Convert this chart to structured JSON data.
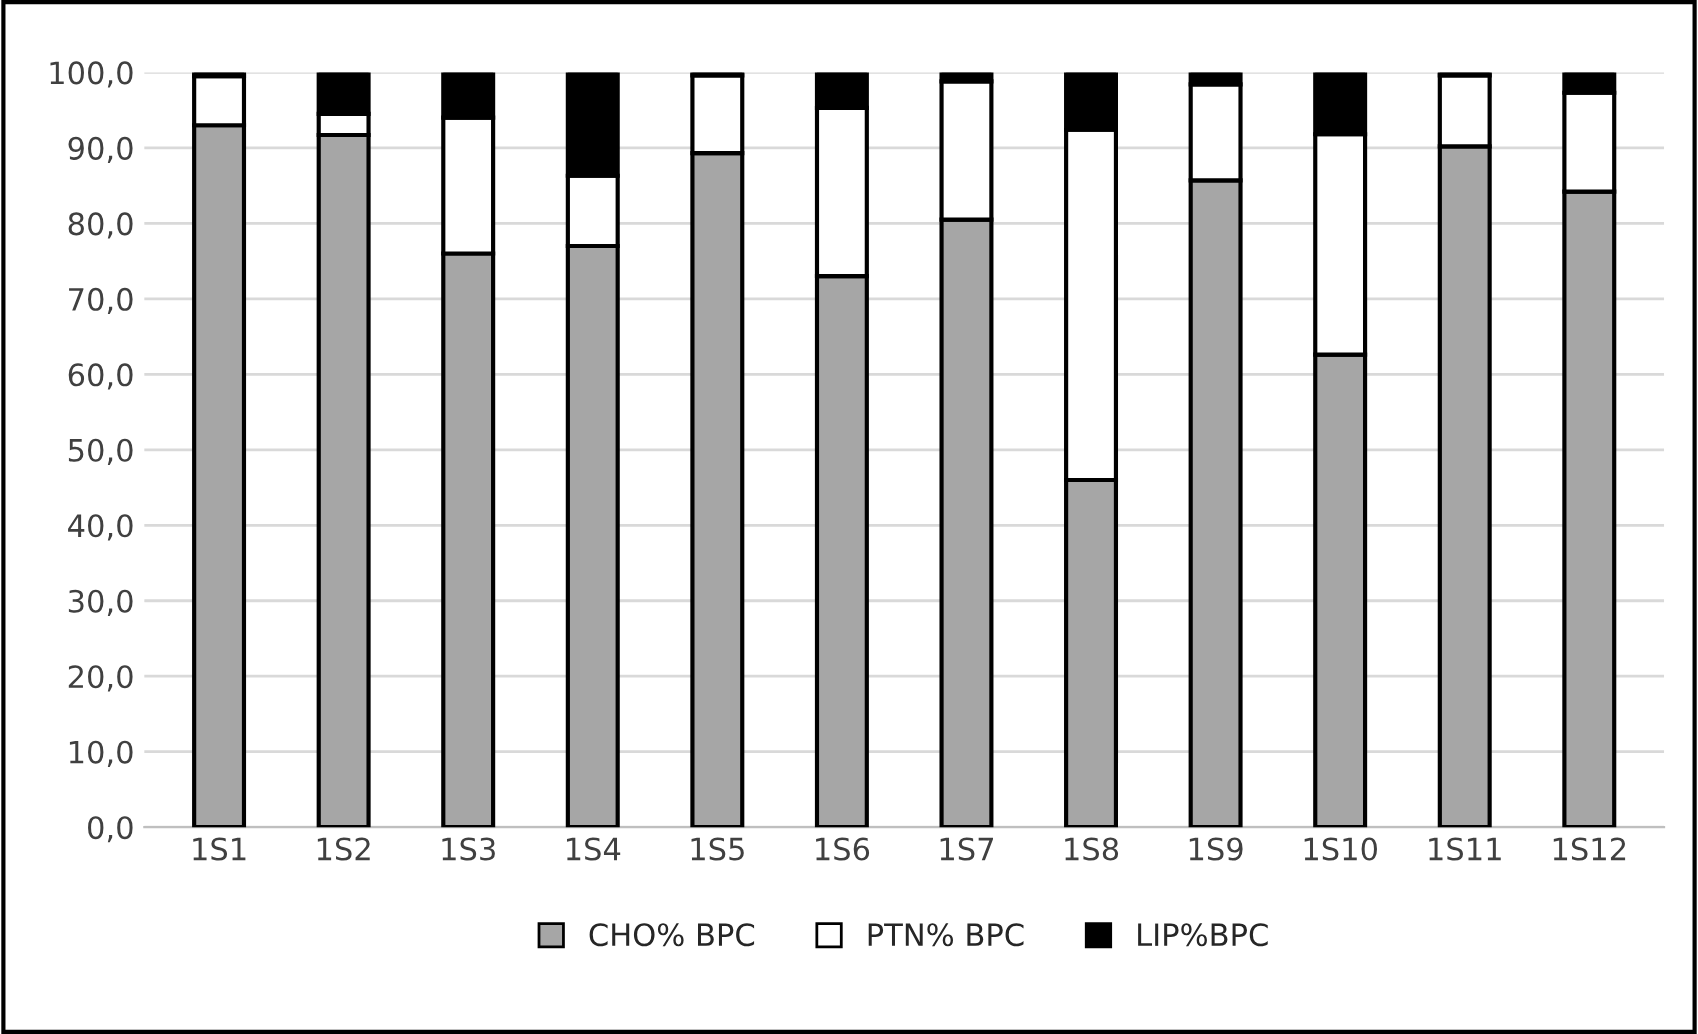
{
  "chart_data": {
    "type": "bar",
    "stacked": true,
    "categories": [
      "1S1",
      "1S2",
      "1S3",
      "1S4",
      "1S5",
      "1S6",
      "1S7",
      "1S8",
      "1S9",
      "1S10",
      "1S11",
      "1S12"
    ],
    "series": [
      {
        "name": "CHO% BPC",
        "color": "#a6a6a6",
        "values": [
          93.0,
          91.7,
          76.0,
          77.0,
          89.3,
          73.0,
          80.5,
          46.0,
          85.7,
          62.6,
          90.2,
          84.2
        ]
      },
      {
        "name": "PTN% BPC",
        "color": "#ffffff",
        "values": [
          6.5,
          2.8,
          18.0,
          9.3,
          10.3,
          22.3,
          18.3,
          46.4,
          12.7,
          29.2,
          9.4,
          13.1
        ]
      },
      {
        "name": "LIP%BPC",
        "color": "#000000",
        "values": [
          0.5,
          5.5,
          6.0,
          13.7,
          0.4,
          4.7,
          1.2,
          7.6,
          1.6,
          8.2,
          0.4,
          2.7
        ]
      }
    ],
    "ylim": [
      0,
      100
    ],
    "yticks": [
      {
        "value": 0,
        "label": "0,0"
      },
      {
        "value": 10,
        "label": "10,0"
      },
      {
        "value": 20,
        "label": "20,0"
      },
      {
        "value": 30,
        "label": "30,0"
      },
      {
        "value": 40,
        "label": "40,0"
      },
      {
        "value": 50,
        "label": "50,0"
      },
      {
        "value": 60,
        "label": "60,0"
      },
      {
        "value": 70,
        "label": "70,0"
      },
      {
        "value": 80,
        "label": "80,0"
      },
      {
        "value": 90,
        "label": "90,0"
      },
      {
        "value": 100,
        "label": "100,0"
      }
    ],
    "grid": "y",
    "legend": "bottom"
  }
}
